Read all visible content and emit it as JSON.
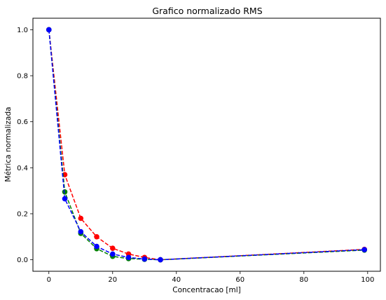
{
  "chart_data": {
    "type": "line",
    "title": "Grafico normalizado RMS",
    "xlabel": "Concentracao [ml]",
    "ylabel": "Métrica normalizada",
    "xlim": [
      -5,
      104
    ],
    "ylim": [
      -0.05,
      1.05
    ],
    "xticks": [
      0,
      20,
      40,
      60,
      80,
      100
    ],
    "yticks": [
      0.0,
      0.2,
      0.4,
      0.6,
      0.8,
      1.0
    ],
    "xtick_labels": [
      "0",
      "20",
      "40",
      "60",
      "80",
      "100"
    ],
    "ytick_labels": [
      "0.0",
      "0.2",
      "0.4",
      "0.6",
      "0.8",
      "1.0"
    ],
    "grid": false,
    "line_style": "dashed",
    "marker": "circle",
    "series": [
      {
        "color": "#ff0000",
        "points": [
          [
            0,
            1.0
          ],
          [
            5,
            0.37
          ],
          [
            10,
            0.18
          ],
          [
            15,
            0.1
          ],
          [
            20,
            0.05
          ],
          [
            25,
            0.025
          ],
          [
            30,
            0.01
          ],
          [
            35,
            0.0
          ],
          [
            99,
            0.045
          ]
        ]
      },
      {
        "color": "#008000",
        "points": [
          [
            0,
            1.0
          ],
          [
            5,
            0.295
          ],
          [
            10,
            0.115
          ],
          [
            15,
            0.048
          ],
          [
            20,
            0.015
          ],
          [
            25,
            0.005
          ],
          [
            30,
            0.002
          ],
          [
            35,
            0.0
          ],
          [
            99,
            0.042
          ]
        ]
      },
      {
        "color": "#0000ff",
        "points": [
          [
            0,
            1.0
          ],
          [
            5,
            0.265
          ],
          [
            10,
            0.122
          ],
          [
            15,
            0.058
          ],
          [
            20,
            0.025
          ],
          [
            25,
            0.01
          ],
          [
            30,
            0.003
          ],
          [
            35,
            0.0
          ],
          [
            99,
            0.044
          ]
        ]
      }
    ]
  }
}
